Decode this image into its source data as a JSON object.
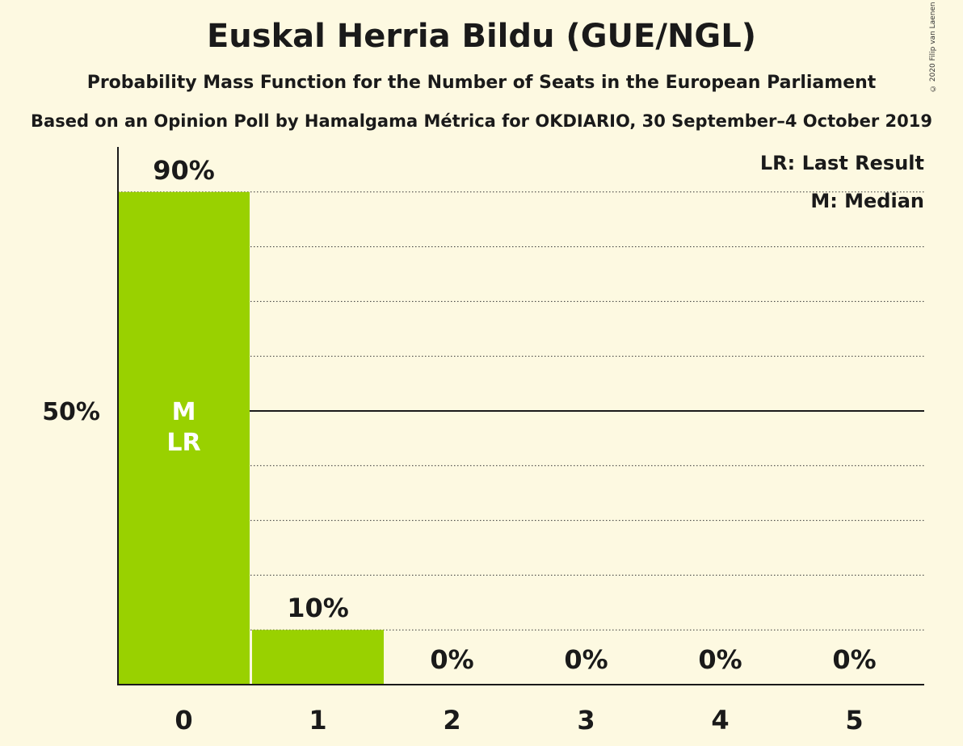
{
  "header": {
    "title": "Euskal Herria Bildu (GUE/NGL)",
    "subtitle": "Probability Mass Function for the Number of Seats in the European Parliament",
    "source": "Based on an Opinion Poll by Hamalgama Métrica for OKDIARIO, 30 September–4 October 2019",
    "copyright": "© 2020 Filip van Laenen"
  },
  "legend": {
    "last_result": "LR: Last Result",
    "median": "M: Median"
  },
  "colors": {
    "background": "#fdf9e1",
    "bar": "#99d100",
    "text": "#1a1a1a",
    "marker_text": "#ffffff"
  },
  "chart_data": {
    "type": "bar",
    "title": "Euskal Herria Bildu (GUE/NGL)",
    "xlabel": "",
    "ylabel": "",
    "categories": [
      "0",
      "1",
      "2",
      "3",
      "4",
      "5"
    ],
    "values": [
      90,
      10,
      0,
      0,
      0,
      0
    ],
    "value_labels": [
      "90%",
      "10%",
      "0%",
      "0%",
      "0%",
      "0%"
    ],
    "ylim": [
      0,
      90
    ],
    "y_ticks": [
      {
        "value": 50,
        "label": "50%"
      }
    ],
    "gridlines_dotted": [
      10,
      20,
      30,
      40,
      60,
      70,
      80,
      90
    ],
    "gridline_solid": 50,
    "bar_markers": [
      {
        "category": "0",
        "lines": [
          "M",
          "LR"
        ]
      }
    ],
    "legend_position": "top-right",
    "grid": true
  }
}
